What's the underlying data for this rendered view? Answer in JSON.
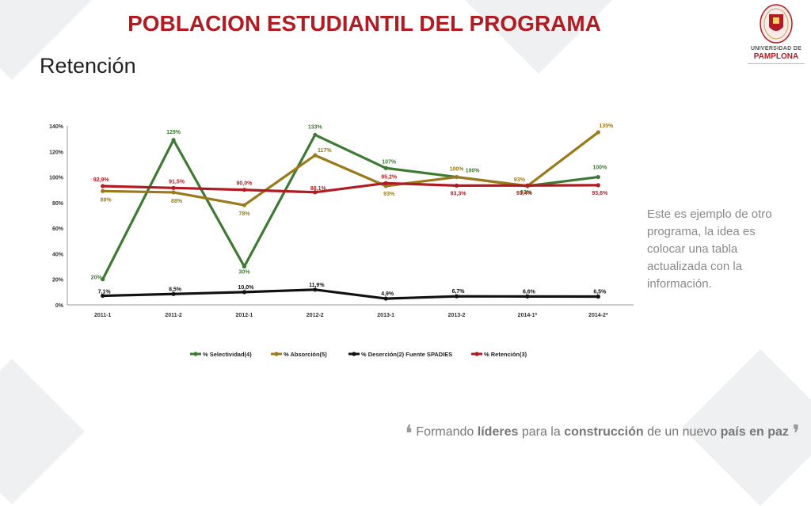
{
  "slide": {
    "title": "POBLACION ESTUDIANTIL DEL PROGRAMA",
    "subtitle": "Retención",
    "note": "Este es ejemplo de otro programa, la idea es colocar una tabla actualizada con la información.",
    "logo": {
      "line1": "UNIVERSIDAD DE",
      "line2": "PAMPLONA",
      "icon": "university-seal-icon"
    },
    "footer": {
      "part1": "Formando ",
      "part2": "líderes",
      "part3": " para la ",
      "part4": "construcción",
      "part5": " de un nuevo ",
      "part6": "país en paz"
    },
    "colors": {
      "title": "#b01c22",
      "selectividad": "#3f7a35",
      "absorcion": "#9a7a1c",
      "desercion": "#111111",
      "retencion": "#b01c22"
    }
  },
  "chart_data": {
    "type": "line",
    "categories": [
      "2011-1",
      "2011-2",
      "2012-1",
      "2012-2",
      "2013-1",
      "2013-2",
      "2014-1*",
      "2014-2*"
    ],
    "ylim": [
      0,
      140
    ],
    "yticks": [
      "0%",
      "20%",
      "40%",
      "60%",
      "80%",
      "100%",
      "120%",
      "140%"
    ],
    "ytick_values": [
      0,
      20,
      40,
      60,
      80,
      100,
      120,
      140
    ],
    "legend_position": "bottom",
    "series": [
      {
        "name": "% Selectividad(4)",
        "color": "#3f7a35",
        "values": [
          20,
          129,
          30,
          133,
          107,
          100,
          93,
          100
        ],
        "labels": [
          "20%",
          "129%",
          "30%",
          "133%",
          "107%",
          "100%",
          "93%",
          "100%"
        ]
      },
      {
        "name": "% Absorción(5)",
        "color": "#9a7a1c",
        "values": [
          89,
          88,
          78,
          117,
          93,
          100,
          93,
          135
        ],
        "labels": [
          "89%",
          "88%",
          "78%",
          "117%",
          "93%",
          "100%",
          "93%",
          "135%"
        ]
      },
      {
        "name": "% Deserción(2)  Fuente SPADIES",
        "color": "#111111",
        "values": [
          7.1,
          8.5,
          10.0,
          11.9,
          4.9,
          6.7,
          6.6,
          6.5
        ],
        "labels": [
          "7,1%",
          "8,5%",
          "10,0%",
          "11,9%",
          "4,9%",
          "6,7%",
          "6,6%",
          "6,5%"
        ]
      },
      {
        "name": "% Retención(3)",
        "color": "#b01c22",
        "values": [
          92.9,
          91.5,
          90.0,
          88.1,
          95.2,
          93.3,
          93.4,
          93.6
        ],
        "labels": [
          "92,9%",
          "91,5%",
          "90,0%",
          "88,1%",
          "95,2%",
          "93,3%",
          "93,4%",
          "93,6%"
        ]
      }
    ]
  }
}
